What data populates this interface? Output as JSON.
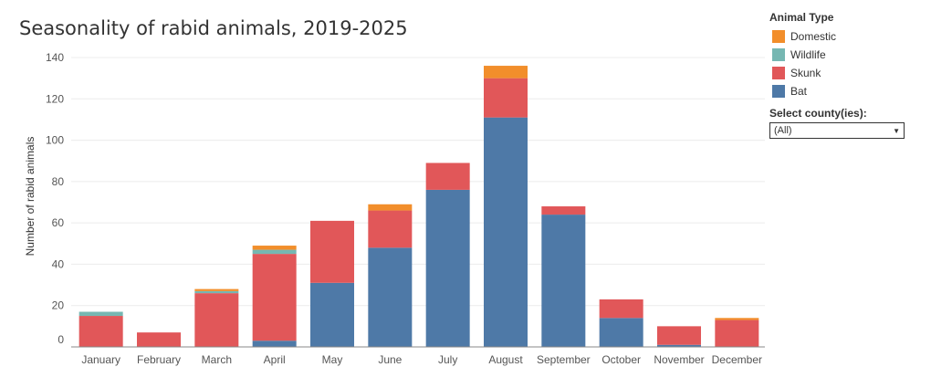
{
  "chart_data": {
    "type": "bar",
    "stacked": true,
    "title": "Seasonality of rabid animals, 2019-2025",
    "xlabel": "",
    "ylabel": "Number of rabid animals",
    "ylim": [
      0,
      140
    ],
    "yticks": [
      0,
      20,
      40,
      60,
      80,
      100,
      120,
      140
    ],
    "grid": true,
    "legend_position": "top-right",
    "categories": [
      "January",
      "February",
      "March",
      "April",
      "May",
      "June",
      "July",
      "August",
      "September",
      "October",
      "November",
      "December"
    ],
    "series": [
      {
        "name": "Bat",
        "color": "#4e79a7",
        "values": [
          0,
          0,
          0,
          3,
          31,
          48,
          76,
          111,
          64,
          14,
          1,
          0
        ]
      },
      {
        "name": "Skunk",
        "color": "#e15759",
        "values": [
          15,
          7,
          26,
          42,
          30,
          18,
          13,
          19,
          4,
          9,
          9,
          13
        ]
      },
      {
        "name": "Wildlife",
        "color": "#76b7b2",
        "values": [
          2,
          0,
          1,
          2,
          0,
          0,
          0,
          0,
          0,
          0,
          0,
          0
        ]
      },
      {
        "name": "Domestic",
        "color": "#f28e2b",
        "values": [
          0,
          0,
          1,
          2,
          0,
          3,
          0,
          6,
          0,
          0,
          0,
          1
        ]
      }
    ]
  },
  "legend": {
    "title": "Animal Type",
    "items": [
      {
        "label": "Domestic",
        "color": "#f28e2b"
      },
      {
        "label": "Wildlife",
        "color": "#76b7b2"
      },
      {
        "label": "Skunk",
        "color": "#e15759"
      },
      {
        "label": "Bat",
        "color": "#4e79a7"
      }
    ]
  },
  "filter": {
    "label": "Select county(ies):",
    "value": "(All)",
    "arrow_icon": "triangle-down-icon"
  }
}
